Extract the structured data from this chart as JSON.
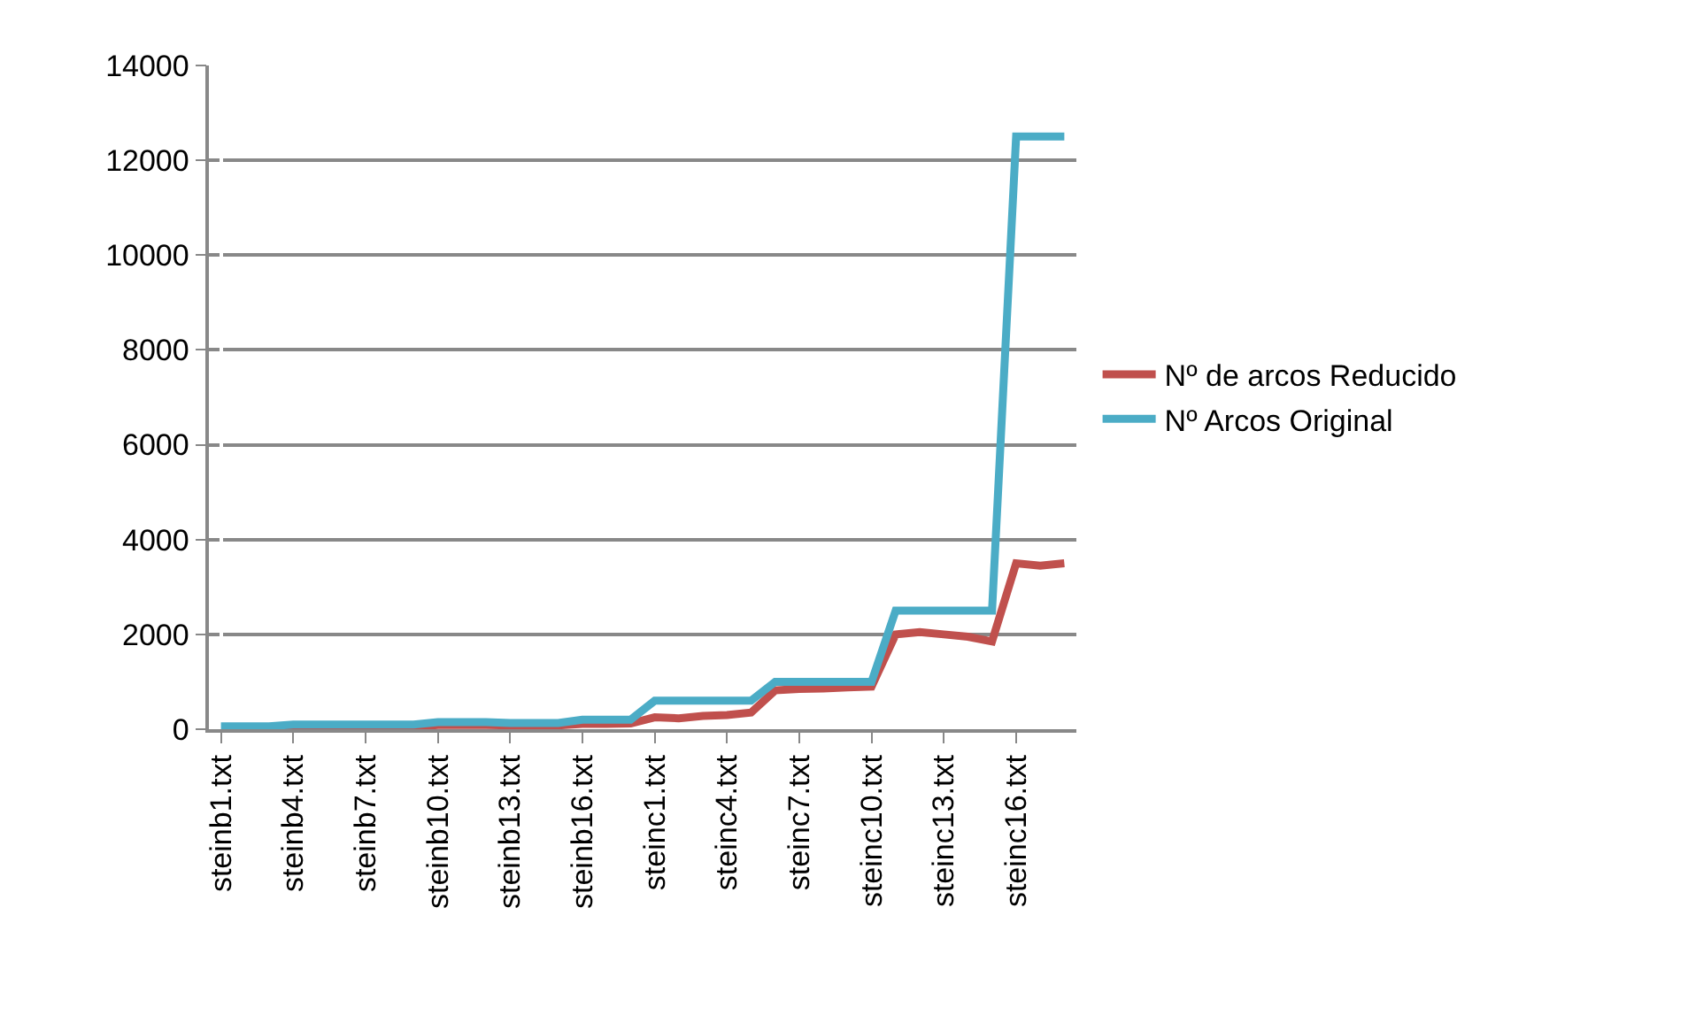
{
  "chart_data": {
    "type": "line",
    "categories": [
      "steinb1.txt",
      null,
      null,
      "steinb4.txt",
      null,
      null,
      "steinb7.txt",
      null,
      null,
      "steinb10.txt",
      null,
      null,
      "steinb13.txt",
      null,
      null,
      "steinb16.txt",
      null,
      null,
      "steinc1.txt",
      null,
      null,
      "steinc4.txt",
      null,
      null,
      "steinc7.txt",
      null,
      null,
      "steinc10.txt",
      null,
      null,
      "steinc13.txt",
      null,
      null,
      "steinc16.txt",
      null,
      null
    ],
    "series": [
      {
        "name": "Nº de arcos Reducido",
        "color": "#c0504d",
        "values": [
          null,
          null,
          30,
          50,
          50,
          50,
          40,
          40,
          40,
          90,
          90,
          90,
          80,
          80,
          80,
          110,
          110,
          120,
          250,
          230,
          280,
          300,
          350,
          820,
          850,
          860,
          880,
          900,
          2000,
          2050,
          2000,
          1950,
          1850,
          3500,
          3450,
          3500
        ]
      },
      {
        "name": "Nº Arcos Original",
        "color": "#4bacc6",
        "values": [
          60,
          60,
          60,
          100,
          100,
          100,
          100,
          100,
          100,
          150,
          150,
          150,
          130,
          130,
          130,
          200,
          200,
          200,
          600,
          600,
          600,
          600,
          600,
          1000,
          1000,
          1000,
          1000,
          1000,
          2500,
          2500,
          2500,
          2500,
          2500,
          12500,
          12500,
          12500
        ]
      }
    ],
    "ylim": [
      0,
      14000
    ],
    "yticks": [
      0,
      2000,
      4000,
      6000,
      8000,
      10000,
      12000,
      14000
    ],
    "grid": "y",
    "legend": "right",
    "marker": "none",
    "line_style": "solid"
  }
}
